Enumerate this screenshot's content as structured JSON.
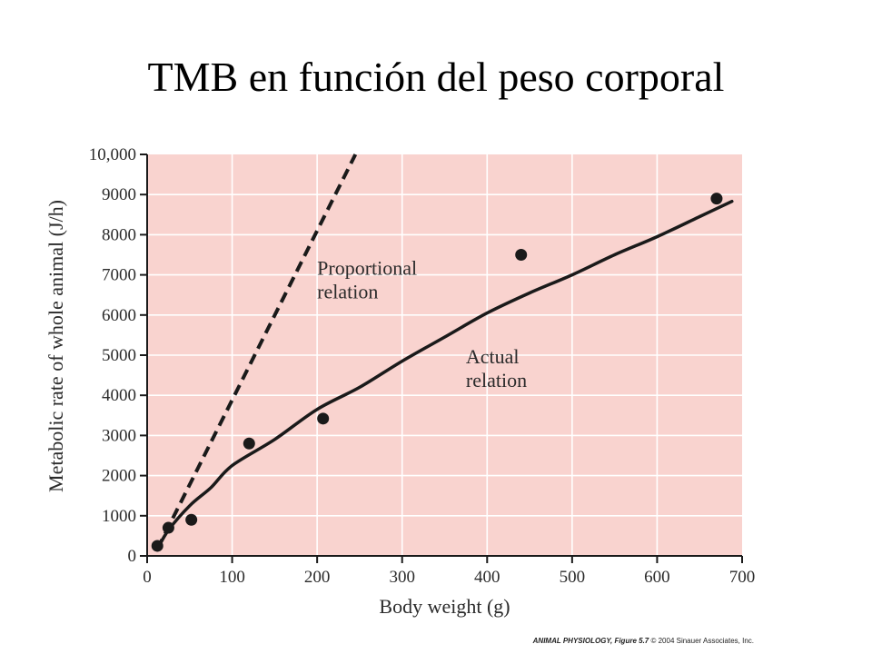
{
  "title": "TMB en función del peso corporal",
  "credit": {
    "source": "ANIMAL PHYSIOLOGY, Figure 5.7",
    "copyright": "© 2004 Sinauer Associates, Inc."
  },
  "colors": {
    "plot_background": "#f9d3cf",
    "grid": "#ffffff",
    "ink": "#1a1a1a"
  },
  "chart_data": {
    "type": "scatter",
    "title": "",
    "xlabel": "Body weight (g)",
    "ylabel": "Metabolic rate of whole animal (J/h)",
    "xlim": [
      0,
      700
    ],
    "ylim": [
      0,
      10000
    ],
    "x_ticks": [
      0,
      100,
      200,
      300,
      400,
      500,
      600,
      700
    ],
    "x_tick_labels": [
      "0",
      "100",
      "200",
      "300",
      "400",
      "500",
      "600",
      "700"
    ],
    "y_ticks": [
      0,
      1000,
      2000,
      3000,
      4000,
      5000,
      6000,
      7000,
      8000,
      9000,
      10000
    ],
    "y_tick_labels": [
      "0",
      "1000",
      "2000",
      "3000",
      "4000",
      "5000",
      "6000",
      "7000",
      "8000",
      "9000",
      "10,000"
    ],
    "grid": true,
    "series": [
      {
        "name": "",
        "kind": "points",
        "points": [
          {
            "x": 12,
            "y": 250
          },
          {
            "x": 25,
            "y": 700
          },
          {
            "x": 52,
            "y": 900
          },
          {
            "x": 120,
            "y": 2800
          },
          {
            "x": 207,
            "y": 3420
          },
          {
            "x": 440,
            "y": 7500
          },
          {
            "x": 670,
            "y": 8900
          }
        ]
      },
      {
        "name": "Proportional relation",
        "kind": "dashed-line",
        "points": [
          {
            "x": 12,
            "y": 170
          },
          {
            "x": 245,
            "y": 10000
          }
        ]
      },
      {
        "name": "Actual relation",
        "kind": "curve",
        "points": [
          {
            "x": 12,
            "y": 170
          },
          {
            "x": 25,
            "y": 640
          },
          {
            "x": 50,
            "y": 1250
          },
          {
            "x": 75,
            "y": 1700
          },
          {
            "x": 100,
            "y": 2250
          },
          {
            "x": 150,
            "y": 2900
          },
          {
            "x": 200,
            "y": 3650
          },
          {
            "x": 250,
            "y": 4200
          },
          {
            "x": 300,
            "y": 4850
          },
          {
            "x": 350,
            "y": 5450
          },
          {
            "x": 400,
            "y": 6050
          },
          {
            "x": 450,
            "y": 6550
          },
          {
            "x": 500,
            "y": 7000
          },
          {
            "x": 550,
            "y": 7500
          },
          {
            "x": 600,
            "y": 7950
          },
          {
            "x": 650,
            "y": 8450
          },
          {
            "x": 688,
            "y": 8830
          }
        ]
      }
    ],
    "annotations": [
      {
        "lines": [
          "Proportional",
          "relation"
        ],
        "x": 200,
        "y": 7000
      },
      {
        "lines": [
          "Actual",
          "relation"
        ],
        "x": 375,
        "y": 4800
      }
    ]
  }
}
